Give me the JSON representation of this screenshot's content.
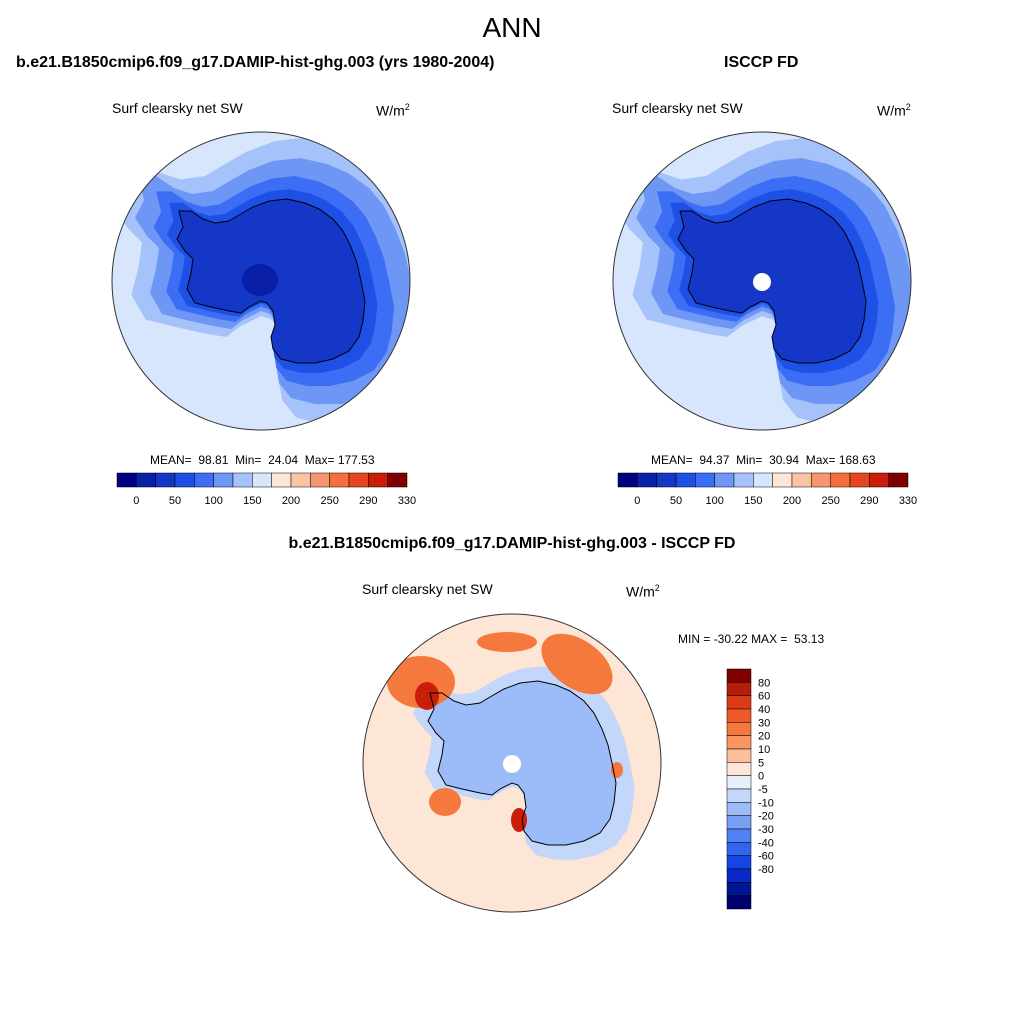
{
  "page_title": "ANN",
  "panels": [
    {
      "title": "b.e21.B1850cmip6.f09_g17.DAMIP-hist-ghg.003 (yrs 1980-2004)",
      "variable": "Surf clearsky net SW",
      "units_base": "W/m",
      "units_exp": "2",
      "stats": {
        "mean_label": "MEAN=",
        "mean": "98.81",
        "min_label": "Min=",
        "min": "24.04",
        "max_label": "Max=",
        "max": "177.53"
      }
    },
    {
      "title": "ISCCP FD",
      "variable": "Surf clearsky net SW",
      "units_base": "W/m",
      "units_exp": "2",
      "stats": {
        "mean_label": "MEAN=",
        "mean": "94.37",
        "min_label": "Min=",
        "min": "30.94",
        "max_label": "Max=",
        "max": "168.63"
      }
    },
    {
      "title": "b.e21.B1850cmip6.f09_g17.DAMIP-hist-ghg.003 - ISCCP FD",
      "variable": "Surf clearsky net SW",
      "units_base": "W/m",
      "units_exp": "2",
      "stats": {
        "min_label": "MIN =",
        "min": "-30.22",
        "max_label": "MAX =",
        "max": "53.13"
      }
    }
  ],
  "colorbar_abs": {
    "colors": [
      "#000080",
      "#0a1fa8",
      "#1437c8",
      "#1e50e6",
      "#3c6ef5",
      "#6e96f5",
      "#a5c3fa",
      "#d7e6fc",
      "#fce6d7",
      "#fac3a5",
      "#f5966e",
      "#f56e3c",
      "#e6461e",
      "#c81e0a",
      "#800000"
    ],
    "ticks": [
      "0",
      "50",
      "100",
      "150",
      "200",
      "250",
      "290",
      "330"
    ]
  },
  "colorbar_diff": {
    "colors": [
      "#800000",
      "#b41e0a",
      "#dc3c14",
      "#f05a28",
      "#f5783c",
      "#fa9664",
      "#fcbe9b",
      "#fde6d5",
      "#e6f0fc",
      "#c3d7fa",
      "#9bbcf8",
      "#7aa0f5",
      "#5082f5",
      "#3264f0",
      "#1446e6",
      "#0a28c8",
      "#001496",
      "#00006e"
    ],
    "labels": [
      "80",
      "60",
      "40",
      "30",
      "20",
      "10",
      "5",
      "0",
      "-5",
      "-10",
      "-20",
      "-30",
      "-40",
      "-60",
      "-80"
    ]
  },
  "map_colors": {
    "ocean_far": "#d7e6fc",
    "ring_1": "#a5c3fa",
    "ring_2": "#6e96f5",
    "ring_3": "#3c6ef5",
    "ring_4": "#1e50e6",
    "continent": "#1437c8",
    "pole_low": "#0a1fa8",
    "diff_bg": "#fde6d5",
    "diff_blue_light": "#c3d7fa",
    "diff_blue_mid": "#9bbcf8",
    "diff_red": "#f5783c",
    "diff_red_dark": "#c81e0a",
    "missing": "#ffffff"
  }
}
